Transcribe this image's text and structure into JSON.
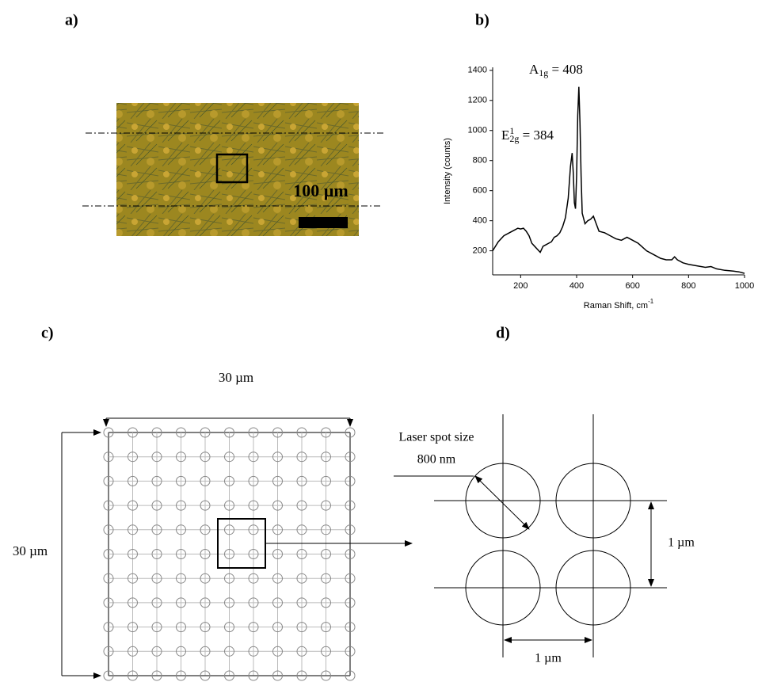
{
  "panel_labels": [
    "a)",
    "b)",
    "c)",
    "d)"
  ],
  "image_a": {
    "scale_label": "100 µm"
  },
  "chart_data": {
    "type": "line",
    "y_label": "Intensity (counts)",
    "x_label": {
      "text": "Raman Shift, cm",
      "sup": "-1"
    },
    "annotations": [
      {
        "base": "A",
        "sub": "1g",
        "rest": " = 408"
      },
      {
        "base": "E",
        "sup": "1",
        "sub": "2g",
        "rest": " = 384"
      }
    ],
    "x": [
      100,
      120,
      140,
      160,
      180,
      190,
      200,
      210,
      220,
      230,
      240,
      250,
      260,
      270,
      280,
      290,
      300,
      310,
      320,
      330,
      340,
      350,
      360,
      370,
      378,
      384,
      388,
      392,
      396,
      400,
      404,
      408,
      412,
      416,
      420,
      430,
      440,
      450,
      460,
      470,
      480,
      500,
      520,
      540,
      560,
      580,
      600,
      620,
      650,
      680,
      700,
      720,
      740,
      750,
      760,
      780,
      800,
      830,
      860,
      880,
      900,
      930,
      960,
      980,
      1000
    ],
    "y": [
      200,
      260,
      300,
      320,
      340,
      350,
      345,
      350,
      330,
      300,
      250,
      230,
      210,
      190,
      230,
      240,
      250,
      260,
      290,
      300,
      320,
      360,
      420,
      550,
      760,
      850,
      720,
      520,
      480,
      700,
      1100,
      1290,
      1050,
      700,
      450,
      380,
      400,
      410,
      430,
      380,
      330,
      320,
      300,
      280,
      270,
      290,
      270,
      250,
      200,
      170,
      150,
      140,
      140,
      160,
      140,
      120,
      110,
      100,
      90,
      95,
      80,
      70,
      65,
      60,
      50
    ],
    "color": "#000000",
    "xlim": [
      100,
      1000
    ],
    "xticks": [
      200,
      400,
      600,
      800,
      1000
    ],
    "ylim": [
      40,
      1420
    ],
    "yticks": [
      200,
      400,
      600,
      800,
      1000,
      1200,
      1400
    ]
  },
  "diagram_c": {
    "top_label": "30 µm",
    "left_label": "30 µm"
  },
  "diagram_d": {
    "spot_label": "Laser spot size",
    "spot_size": "800 nm",
    "vertical_label": "1 µm",
    "horizontal_label": "1 µm"
  }
}
